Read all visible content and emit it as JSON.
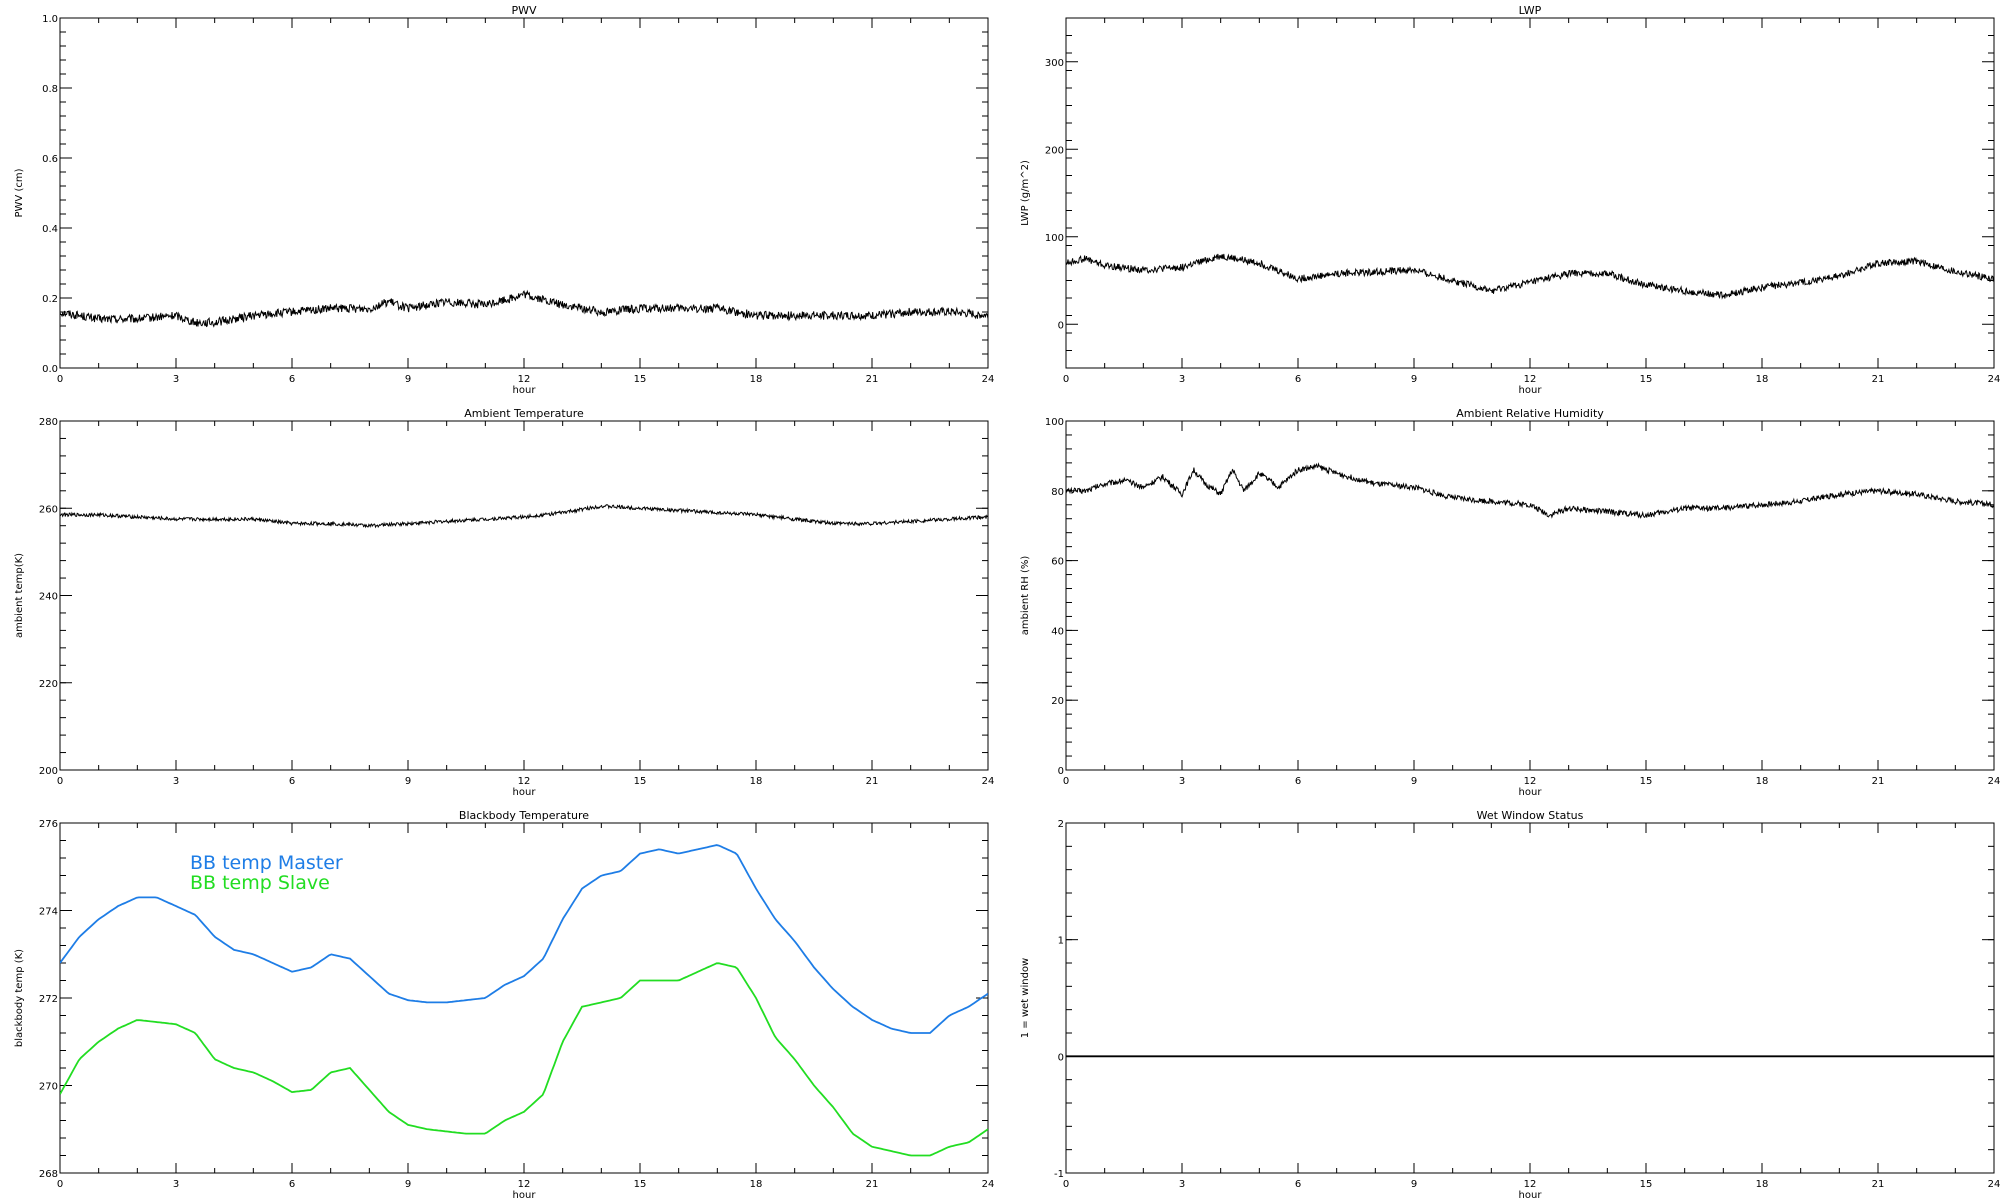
{
  "chart_data": [
    {
      "type": "line",
      "title": "PWV",
      "xlabel": "hour",
      "ylabel": "PWV (cm)",
      "xlim": [
        0,
        24
      ],
      "ylim": [
        0,
        1.0
      ],
      "xticks": [
        0,
        3,
        6,
        9,
        12,
        15,
        18,
        21,
        24
      ],
      "yticks": [
        "0.0",
        "0.2",
        "0.4",
        "0.6",
        "0.8",
        "1.0"
      ],
      "noise": 0.012,
      "series": [
        {
          "color": "#000000",
          "x": [
            0,
            1,
            2,
            3,
            3.5,
            4,
            5,
            6,
            7,
            8,
            8.5,
            9,
            10,
            11,
            12,
            13,
            14,
            15,
            16,
            17,
            18,
            19,
            20,
            21,
            22,
            23,
            24
          ],
          "y": [
            0.16,
            0.14,
            0.14,
            0.15,
            0.13,
            0.13,
            0.15,
            0.16,
            0.17,
            0.17,
            0.19,
            0.17,
            0.19,
            0.18,
            0.21,
            0.18,
            0.16,
            0.17,
            0.17,
            0.17,
            0.15,
            0.15,
            0.15,
            0.15,
            0.16,
            0.16,
            0.15
          ]
        }
      ]
    },
    {
      "type": "line",
      "title": "LWP",
      "xlabel": "hour",
      "ylabel": "LWP (g/m^2)",
      "xlim": [
        0,
        24
      ],
      "ylim": [
        -50,
        350
      ],
      "xticks": [
        0,
        3,
        6,
        9,
        12,
        15,
        18,
        21,
        24
      ],
      "yticks": [
        "0",
        "100",
        "200",
        "300"
      ],
      "noise": 4,
      "series": [
        {
          "color": "#000000",
          "x": [
            0,
            0.5,
            1,
            2,
            3,
            4,
            5,
            6,
            7,
            8,
            9,
            10,
            11,
            12,
            13,
            14,
            15,
            16,
            17,
            18,
            19,
            20,
            21,
            22,
            23,
            24
          ],
          "y": [
            70,
            75,
            67,
            62,
            65,
            78,
            70,
            52,
            58,
            60,
            62,
            50,
            38,
            48,
            58,
            58,
            45,
            38,
            33,
            42,
            48,
            55,
            70,
            72,
            60,
            52
          ]
        }
      ]
    },
    {
      "type": "line",
      "title": "Ambient Temperature",
      "xlabel": "hour",
      "ylabel": "ambient temp(K)",
      "xlim": [
        0,
        24
      ],
      "ylim": [
        200,
        280
      ],
      "xticks": [
        0,
        3,
        6,
        9,
        12,
        15,
        18,
        21,
        24
      ],
      "yticks": [
        "200",
        "220",
        "240",
        "260",
        "280"
      ],
      "noise": 0.4,
      "series": [
        {
          "color": "#000000",
          "x": [
            0,
            1,
            2,
            3,
            4,
            5,
            6,
            7,
            8,
            9,
            10,
            11,
            12,
            13,
            14,
            15,
            16,
            17,
            18,
            19,
            20,
            21,
            22,
            23,
            24
          ],
          "y": [
            258.5,
            258.5,
            258,
            257.5,
            257.5,
            257.5,
            256.5,
            256.5,
            256,
            256.5,
            257,
            257.5,
            258,
            259,
            260.5,
            260,
            259.5,
            259,
            258.5,
            257.5,
            256.5,
            256.5,
            257,
            257.5,
            258
          ]
        }
      ]
    },
    {
      "type": "line",
      "title": "Ambient Relative Humidity",
      "xlabel": "hour",
      "ylabel": "ambient RH (%)",
      "xlim": [
        0,
        24
      ],
      "ylim": [
        0,
        100
      ],
      "xticks": [
        0,
        3,
        6,
        9,
        12,
        15,
        18,
        21,
        24
      ],
      "yticks": [
        "0",
        "20",
        "40",
        "60",
        "80",
        "100"
      ],
      "noise": 0.8,
      "series": [
        {
          "color": "#000000",
          "x": [
            0,
            0.5,
            1,
            1.5,
            2,
            2.5,
            3,
            3.3,
            3.6,
            4,
            4.3,
            4.6,
            5,
            5.5,
            6,
            6.5,
            7,
            8,
            9,
            10,
            11,
            12,
            12.5,
            13,
            14,
            15,
            16,
            17,
            18,
            19,
            20,
            21,
            22,
            23,
            24
          ],
          "y": [
            80,
            80,
            82,
            83,
            81,
            84,
            79,
            86,
            82,
            79,
            86,
            80,
            85,
            81,
            86,
            87,
            85,
            82,
            81,
            78,
            77,
            76,
            73,
            75,
            74,
            73,
            75,
            75,
            76,
            77,
            79,
            80,
            79,
            77,
            76
          ]
        }
      ]
    },
    {
      "type": "line",
      "title": "Blackbody Temperature",
      "xlabel": "hour",
      "ylabel": "blackbody temp (K)",
      "xlim": [
        0,
        24
      ],
      "ylim": [
        268,
        276
      ],
      "xticks": [
        0,
        3,
        6,
        9,
        12,
        15,
        18,
        21,
        24
      ],
      "yticks": [
        "268",
        "270",
        "272",
        "274",
        "276"
      ],
      "noise": 0,
      "legend": [
        {
          "label": "BB temp Master",
          "color": "#1e7de6"
        },
        {
          "label": "BB temp Slave",
          "color": "#22dd22"
        }
      ],
      "series": [
        {
          "name": "BB temp Master",
          "color": "#1e7de6",
          "x": [
            0,
            0.5,
            1,
            1.5,
            2,
            2.5,
            3,
            3.5,
            4,
            4.5,
            5,
            5.5,
            6,
            6.5,
            7,
            7.5,
            8,
            8.5,
            9,
            9.5,
            10,
            10.5,
            11,
            11.5,
            12,
            12.5,
            13,
            13.5,
            14,
            14.5,
            15,
            15.5,
            16,
            16.5,
            17,
            17.5,
            18,
            18.5,
            19,
            19.5,
            20,
            20.5,
            21,
            21.5,
            22,
            22.5,
            23,
            23.5,
            24
          ],
          "y": [
            272.8,
            273.4,
            273.8,
            274.1,
            274.3,
            274.3,
            274.1,
            273.9,
            273.4,
            273.1,
            273.0,
            272.8,
            272.6,
            272.7,
            273.0,
            272.9,
            272.5,
            272.1,
            271.95,
            271.9,
            271.9,
            271.95,
            272.0,
            272.3,
            272.5,
            272.9,
            273.8,
            274.5,
            274.8,
            274.9,
            275.3,
            275.4,
            275.3,
            275.4,
            275.5,
            275.3,
            274.5,
            273.8,
            273.3,
            272.7,
            272.2,
            271.8,
            271.5,
            271.3,
            271.2,
            271.2,
            271.6,
            271.8,
            272.1
          ]
        },
        {
          "name": "BB temp Slave",
          "color": "#22dd22",
          "x": [
            0,
            0.5,
            1,
            1.5,
            2,
            2.5,
            3,
            3.5,
            4,
            4.5,
            5,
            5.5,
            6,
            6.5,
            7,
            7.5,
            8,
            8.5,
            9,
            9.5,
            10,
            10.5,
            11,
            11.5,
            12,
            12.5,
            13,
            13.5,
            14,
            14.5,
            15,
            15.5,
            16,
            16.5,
            17,
            17.5,
            18,
            18.5,
            19,
            19.5,
            20,
            20.5,
            21,
            21.5,
            22,
            22.5,
            23,
            23.5,
            24
          ],
          "y": [
            269.8,
            270.6,
            271.0,
            271.3,
            271.5,
            271.45,
            271.4,
            271.2,
            270.6,
            270.4,
            270.3,
            270.1,
            269.85,
            269.9,
            270.3,
            270.4,
            269.9,
            269.4,
            269.1,
            269.0,
            268.95,
            268.9,
            268.9,
            269.2,
            269.4,
            269.8,
            271.0,
            271.8,
            271.9,
            272.0,
            272.4,
            272.4,
            272.4,
            272.6,
            272.8,
            272.7,
            272.0,
            271.1,
            270.6,
            270.0,
            269.5,
            268.9,
            268.6,
            268.5,
            268.4,
            268.4,
            268.6,
            268.7,
            269.0
          ]
        }
      ]
    },
    {
      "type": "line",
      "title": "Wet Window Status",
      "xlabel": "hour",
      "ylabel": "1 = wet window",
      "xlim": [
        0,
        24
      ],
      "ylim": [
        -1,
        2
      ],
      "xticks": [
        0,
        3,
        6,
        9,
        12,
        15,
        18,
        21,
        24
      ],
      "yticks": [
        "-1",
        "0",
        "1",
        "2"
      ],
      "noise": 0,
      "series": [
        {
          "color": "#000000",
          "x": [
            0,
            24
          ],
          "y": [
            0,
            0
          ]
        }
      ]
    }
  ]
}
